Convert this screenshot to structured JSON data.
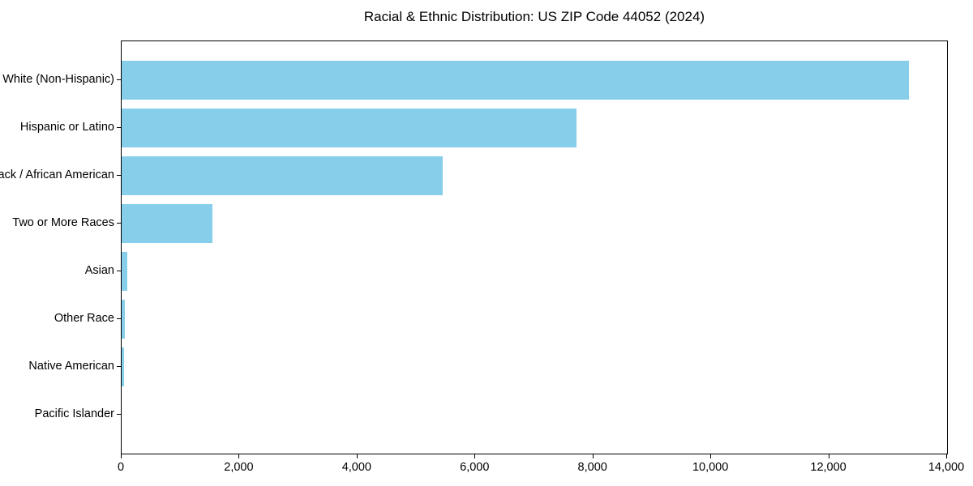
{
  "title": "Racial & Ethnic Distribution: US ZIP Code 44052 (2024)",
  "chart_data": {
    "type": "bar",
    "orientation": "horizontal",
    "title": "Racial & Ethnic Distribution: US ZIP Code 44052 (2024)",
    "categories": [
      "White (Non-Hispanic)",
      "Hispanic or Latino",
      "Black / African American",
      "Two or More Races",
      "Asian",
      "Other Race",
      "Native American",
      "Pacific Islander"
    ],
    "values": [
      13350,
      7710,
      5450,
      1540,
      100,
      50,
      45,
      0
    ],
    "xlabel": "",
    "ylabel": "",
    "xlim": [
      0,
      14000
    ],
    "x_ticks": [
      0,
      2000,
      4000,
      6000,
      8000,
      10000,
      12000,
      14000
    ],
    "x_tick_labels": [
      "0",
      "2,000",
      "4,000",
      "6,000",
      "8,000",
      "10,000",
      "12,000",
      "14,000"
    ],
    "bar_color": "#87CEEB",
    "axis_color": "#000000",
    "background_color": "#ffffff",
    "grid": false,
    "legend": null,
    "frame": "full-box"
  }
}
